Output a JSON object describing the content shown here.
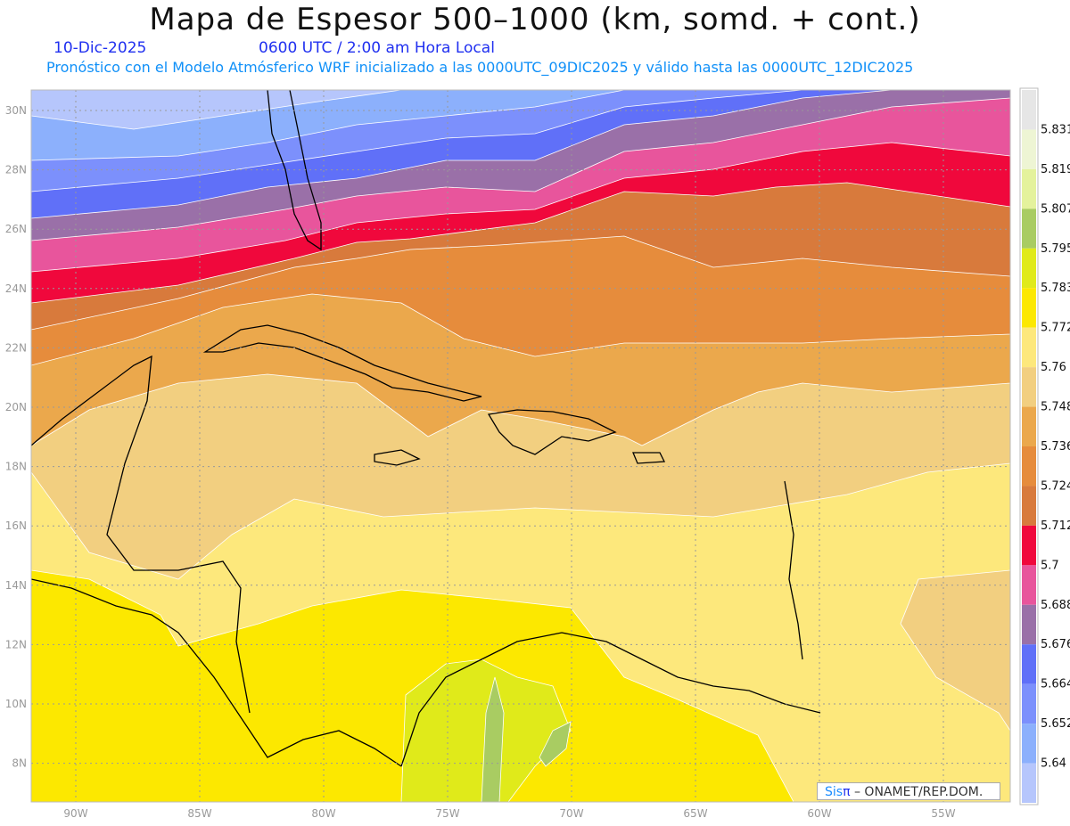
{
  "header": {
    "title": "Mapa de Espesor 500–1000 (km, somd. + cont.)",
    "date": "10-Dic-2025",
    "time": "0600 UTC / 2:00 am Hora Local",
    "description": "Pronóstico con el Modelo Atmósferico WRF inicializado a las 0000UTC_09DIC2025 y válido hasta las  0000UTC_12DIC2025"
  },
  "axes": {
    "longitudes": [
      "90W",
      "85W",
      "80W",
      "75W",
      "70W",
      "65W",
      "60W",
      "55W"
    ],
    "latitudes": [
      "30N",
      "28N",
      "26N",
      "24N",
      "22N",
      "20N",
      "18N",
      "16N",
      "14N",
      "12N",
      "10N",
      "8N"
    ]
  },
  "colorbar": {
    "colors": [
      "#e6e6e6",
      "#eef5d4",
      "#e4f29c",
      "#a9cc62",
      "#e0ea1a",
      "#fce800",
      "#fde87c",
      "#f2cf80",
      "#eba84c",
      "#e68c3c",
      "#d87a3c",
      "#f0083c",
      "#e8559c",
      "#9a70a8",
      "#6070f8",
      "#7c90fc",
      "#8cb0fc",
      "#b6c6fc"
    ],
    "labels": [
      "5.831",
      "5.819",
      "5.807",
      "5.795",
      "5.783",
      "5.772",
      "5.76",
      "5.748",
      "5.736",
      "5.724",
      "5.712",
      "5.7",
      "5.688",
      "5.676",
      "5.664",
      "5.652",
      "5.64"
    ]
  },
  "credit": {
    "brand_sis": "Sis",
    "brand_pi": "π",
    "text": "– ONAMET/REP.DOM."
  }
}
